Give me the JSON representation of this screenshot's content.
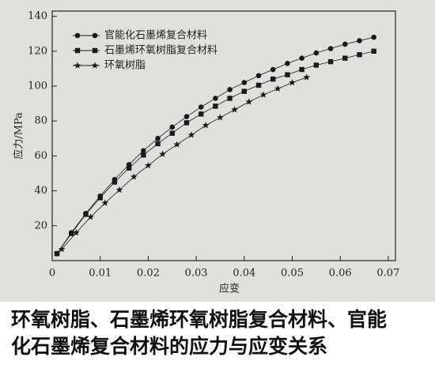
{
  "chart_data": {
    "type": "scatter-line",
    "caption": "环氧树脂、石墨烯环氧树脂复合材料、官能化石墨烯复合材料的应力与应变关系",
    "x_label": "应变",
    "y_label": "应力/MPa",
    "xlim": [
      0,
      0.0715
    ],
    "ylim": [
      0,
      143
    ],
    "xticks": [
      0,
      0.01,
      0.02,
      0.03,
      0.04,
      0.05,
      0.06,
      0.07
    ],
    "yticks": [
      20,
      40,
      60,
      80,
      100,
      120,
      140
    ],
    "legend": "top-left",
    "series": [
      {
        "name": "官能化石墨烯复合材料",
        "color": "#1a1a1a",
        "marker": "circle",
        "x": [
          0.001,
          0.004,
          0.007,
          0.01,
          0.013,
          0.016,
          0.019,
          0.022,
          0.025,
          0.028,
          0.031,
          0.034,
          0.037,
          0.04,
          0.043,
          0.046,
          0.049,
          0.052,
          0.055,
          0.058,
          0.061,
          0.064,
          0.067
        ],
        "values": [
          4,
          16,
          27,
          37,
          46.5,
          55,
          63,
          70,
          76.5,
          82.5,
          88,
          93,
          98,
          102,
          106,
          109.5,
          113,
          116,
          119,
          121.5,
          124,
          126,
          128
        ]
      },
      {
        "name": "石墨烯环氧树脂复合材料",
        "color": "#1a1a1a",
        "marker": "square",
        "x": [
          0.001,
          0.004,
          0.007,
          0.01,
          0.013,
          0.016,
          0.019,
          0.022,
          0.025,
          0.028,
          0.031,
          0.034,
          0.037,
          0.04,
          0.043,
          0.046,
          0.049,
          0.052,
          0.055,
          0.058,
          0.061,
          0.064,
          0.067
        ],
        "values": [
          4,
          15.5,
          26.5,
          36,
          45,
          53,
          60.5,
          67,
          73,
          79,
          84,
          88.5,
          93,
          97,
          100.5,
          104,
          106.5,
          109.5,
          112,
          114,
          116,
          118,
          120
        ]
      },
      {
        "name": "环氧树脂",
        "color": "#1a1a1a",
        "marker": "star",
        "x": [
          0.002,
          0.005,
          0.008,
          0.011,
          0.014,
          0.017,
          0.02,
          0.023,
          0.026,
          0.029,
          0.032,
          0.035,
          0.038,
          0.041,
          0.044,
          0.047,
          0.05,
          0.053
        ],
        "values": [
          6.5,
          16,
          25,
          33,
          40.5,
          48,
          54.5,
          61,
          66.5,
          72,
          77.5,
          82,
          86.5,
          91,
          95,
          98.5,
          102,
          105
        ]
      }
    ]
  }
}
